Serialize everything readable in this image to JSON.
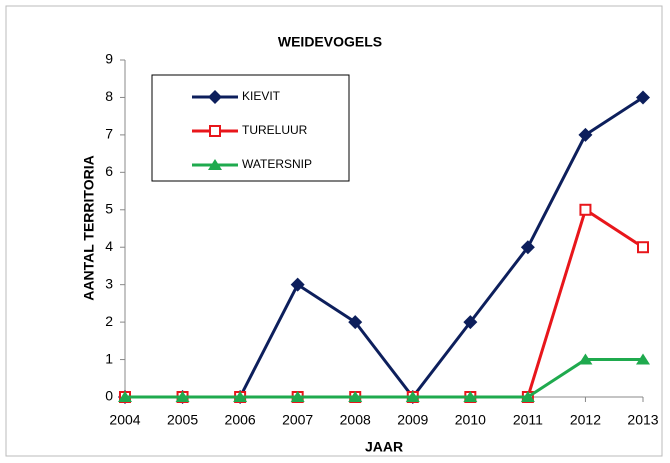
{
  "chart_data": {
    "type": "line",
    "title": "WEIDEVOGELS",
    "x_label": "JAAR",
    "y_label": "AANTAL TERRITORIA",
    "categories": [
      "2004",
      "2005",
      "2006",
      "2007",
      "2008",
      "2009",
      "2010",
      "2011",
      "2012",
      "2013"
    ],
    "series": [
      {
        "name": "KIEVIT",
        "color": "#0d1f5c",
        "marker": "diamond",
        "values": [
          0,
          0,
          0,
          3,
          2,
          0,
          2,
          4,
          7,
          8
        ]
      },
      {
        "name": "TURELUUR",
        "color": "#e8161b",
        "marker": "square-open",
        "values": [
          0,
          0,
          0,
          0,
          0,
          0,
          0,
          0,
          5,
          4
        ]
      },
      {
        "name": "WATERSNIP",
        "color": "#1faa4e",
        "marker": "triangle",
        "values": [
          0,
          0,
          0,
          0,
          0,
          0,
          0,
          0,
          1,
          1
        ]
      }
    ],
    "ylim": [
      0,
      9
    ],
    "yticks": [
      0,
      1,
      2,
      3,
      4,
      5,
      6,
      7,
      8,
      9
    ],
    "grid": false,
    "legend": "top-left"
  }
}
